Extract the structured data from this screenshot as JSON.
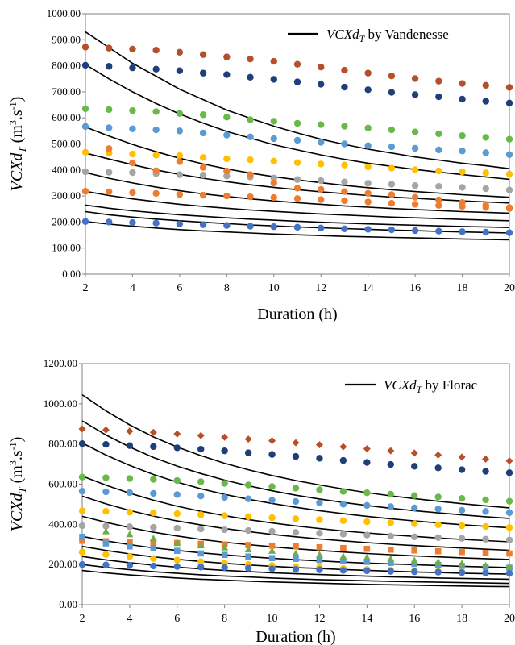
{
  "chart_data": [
    {
      "type": "scatter",
      "title": "",
      "xlabel": "Duration (h)",
      "ylabel": "VCXd_T (m3.s-1)",
      "ylabel_parts": {
        "main": "VCXd",
        "sub": "T",
        "unit_open": " (m",
        "sup1": "3",
        "mid": ".s",
        "sup2": "-1",
        "unit_close": ")"
      },
      "legend": [
        {
          "name_main": "VCXd",
          "name_sub": "T",
          "name_rest": " by Vandenesse",
          "color": "#000000"
        }
      ],
      "legend_position": "top-right",
      "xlim": [
        2,
        20
      ],
      "ylim": [
        0,
        1000
      ],
      "x_ticks": [
        2,
        4,
        6,
        8,
        10,
        12,
        14,
        16,
        18,
        20
      ],
      "y_ticks": [
        "0.00",
        "100.00",
        "200.00",
        "300.00",
        "400.00",
        "500.00",
        "600.00",
        "700.00",
        "800.00",
        "900.00",
        "1000.00"
      ],
      "grid": false,
      "x": [
        2,
        3,
        4,
        5,
        6,
        7,
        8,
        9,
        10,
        11,
        12,
        13,
        14,
        15,
        16,
        17,
        18,
        19,
        20
      ],
      "series": [
        {
          "color": "#b5502a",
          "marker": "circle",
          "values": [
            872,
            868,
            864,
            860,
            852,
            843,
            834,
            826,
            817,
            806,
            795,
            783,
            772,
            761,
            751,
            741,
            732,
            725,
            717
          ]
        },
        {
          "color": "#1f3f7a",
          "marker": "circle",
          "values": [
            802,
            798,
            792,
            787,
            781,
            772,
            766,
            756,
            748,
            738,
            729,
            718,
            708,
            698,
            689,
            681,
            672,
            664,
            657
          ]
        },
        {
          "color": "#6ab84a",
          "marker": "circle",
          "values": [
            635,
            632,
            628,
            624,
            617,
            612,
            603,
            593,
            587,
            579,
            574,
            568,
            561,
            554,
            546,
            539,
            532,
            525,
            518
          ]
        },
        {
          "color": "#5b9bd5",
          "marker": "circle",
          "values": [
            567,
            562,
            558,
            554,
            550,
            542,
            534,
            527,
            520,
            514,
            506,
            500,
            493,
            489,
            483,
            477,
            473,
            466,
            459
          ]
        },
        {
          "color": "#ffc000",
          "marker": "circle",
          "values": [
            468,
            465,
            461,
            457,
            455,
            448,
            443,
            439,
            434,
            428,
            423,
            419,
            412,
            407,
            401,
            396,
            393,
            389,
            384
          ]
        },
        {
          "color": "#a5a5a5",
          "marker": "circle",
          "values": [
            393,
            391,
            390,
            386,
            382,
            380,
            377,
            373,
            369,
            363,
            359,
            354,
            349,
            345,
            340,
            337,
            333,
            328,
            323
          ]
        },
        {
          "color": "#ed7d31",
          "marker": "circle",
          "values": [
            318,
            482,
            427,
            397,
            432,
            410,
            396,
            382,
            350,
            330,
            325,
            317,
            310,
            305,
            295,
            285,
            275,
            265,
            255
          ]
        },
        {
          "color": "#ed7d31",
          "marker": "circle",
          "values": [
            318,
            316,
            313,
            310,
            306,
            303,
            300,
            297,
            294,
            290,
            286,
            282,
            277,
            272,
            268,
            264,
            260,
            256,
            252
          ]
        },
        {
          "color": "#4472c4",
          "marker": "circle",
          "values": [
            202,
            200,
            198,
            196,
            193,
            190,
            187,
            184,
            182,
            180,
            177,
            174,
            172,
            170,
            167,
            165,
            163,
            161,
            159
          ]
        }
      ],
      "curves": [
        {
          "name": "VCXd_T by Vandenesse",
          "values": [
            930,
            870,
            810,
            760,
            710,
            670,
            630,
            598,
            568,
            542,
            518,
            498,
            480,
            465,
            450,
            438,
            426,
            416,
            405
          ]
        },
        {
          "values": [
            805,
            750,
            700,
            655,
            615,
            580,
            548,
            522,
            497,
            477,
            458,
            441,
            426,
            414,
            402,
            392,
            382,
            373,
            364
          ]
        },
        {
          "values": [
            565,
            530,
            498,
            470,
            445,
            423,
            404,
            388,
            374,
            362,
            351,
            341,
            332,
            324,
            317,
            311,
            305,
            300,
            295
          ]
        },
        {
          "values": [
            465,
            442,
            420,
            400,
            383,
            368,
            355,
            343,
            333,
            324,
            316,
            309,
            302,
            296,
            291,
            286,
            281,
            277,
            273
          ]
        },
        {
          "values": [
            390,
            368,
            350,
            334,
            320,
            308,
            298,
            289,
            281,
            274,
            268,
            262,
            257,
            252,
            248,
            244,
            240,
            237,
            234
          ]
        },
        {
          "values": [
            318,
            302,
            289,
            278,
            268,
            260,
            253,
            246,
            241,
            236,
            231,
            227,
            223,
            219,
            216,
            213,
            210,
            207,
            205
          ]
        },
        {
          "values": [
            265,
            253,
            243,
            235,
            228,
            222,
            216,
            211,
            207,
            203,
            199,
            196,
            193,
            190,
            188,
            185,
            183,
            181,
            179
          ]
        },
        {
          "values": [
            240,
            228,
            219,
            211,
            205,
            199,
            194,
            189,
            185,
            181,
            178,
            175,
            172,
            169,
            167,
            164,
            162,
            160,
            158
          ]
        },
        {
          "values": [
            202,
            192,
            184,
            177,
            171,
            166,
            162,
            158,
            154,
            151,
            148,
            145,
            143,
            141,
            139,
            137,
            135,
            133,
            132
          ]
        }
      ]
    },
    {
      "type": "scatter",
      "title": "",
      "xlabel": "Duration (h)",
      "ylabel": "VCXd_T (m3.s-1)",
      "ylabel_parts": {
        "main": "VCXd",
        "sub": "T",
        "unit_open": " (m",
        "sup1": "3",
        "mid": ".s",
        "sup2": "-1",
        "unit_close": ")"
      },
      "legend": [
        {
          "name_main": "VCXd",
          "name_sub": "T",
          "name_rest": " by Florac",
          "color": "#000000"
        }
      ],
      "legend_position": "top-right",
      "xlim": [
        2,
        20
      ],
      "ylim": [
        0,
        1200
      ],
      "x_ticks": [
        2,
        4,
        6,
        8,
        10,
        12,
        14,
        16,
        18,
        20
      ],
      "y_ticks": [
        "0.00",
        "200.00",
        "400.00",
        "600.00",
        "800.00",
        "1000.00",
        "1200.00"
      ],
      "grid": false,
      "x": [
        2,
        3,
        4,
        5,
        6,
        7,
        8,
        9,
        10,
        11,
        12,
        13,
        14,
        15,
        16,
        17,
        18,
        19,
        20
      ],
      "series": [
        {
          "color": "#b5502a",
          "marker": "diamond",
          "values": [
            875,
            870,
            864,
            858,
            850,
            842,
            834,
            824,
            816,
            806,
            796,
            786,
            776,
            766,
            755,
            745,
            735,
            725,
            716
          ]
        },
        {
          "color": "#1f3f7a",
          "marker": "circle",
          "values": [
            802,
            798,
            792,
            787,
            781,
            774,
            766,
            756,
            748,
            738,
            729,
            718,
            708,
            698,
            689,
            681,
            672,
            664,
            657
          ]
        },
        {
          "color": "#6ab84a",
          "marker": "circle",
          "values": [
            635,
            632,
            628,
            624,
            618,
            612,
            604,
            596,
            588,
            580,
            572,
            564,
            557,
            550,
            543,
            536,
            529,
            522,
            515
          ]
        },
        {
          "color": "#5b9bd5",
          "marker": "circle",
          "values": [
            565,
            562,
            558,
            554,
            548,
            541,
            534,
            527,
            520,
            514,
            507,
            500,
            494,
            488,
            482,
            476,
            470,
            464,
            458
          ]
        },
        {
          "color": "#ffc000",
          "marker": "circle",
          "values": [
            468,
            465,
            461,
            457,
            453,
            448,
            443,
            438,
            433,
            428,
            423,
            418,
            413,
            408,
            403,
            398,
            393,
            389,
            384
          ]
        },
        {
          "color": "#a5a5a5",
          "marker": "circle",
          "values": [
            393,
            391,
            388,
            385,
            381,
            377,
            373,
            369,
            365,
            360,
            356,
            351,
            347,
            342,
            338,
            334,
            330,
            326,
            322
          ]
        },
        {
          "color": "#ed7d31",
          "marker": "square",
          "values": [
            318,
            316,
            313,
            310,
            307,
            303,
            300,
            297,
            294,
            290,
            286,
            282,
            278,
            274,
            270,
            266,
            262,
            258,
            255
          ]
        },
        {
          "color": "#5b9bd5",
          "marker": "square",
          "values": [
            338,
            305,
            290,
            280,
            268,
            255,
            248,
            240,
            232,
            228,
            222,
            218,
            213,
            208,
            203,
            198,
            193,
            188,
            184
          ]
        },
        {
          "color": "#70ad47",
          "marker": "triangle",
          "values": [
            270,
            365,
            350,
            330,
            310,
            295,
            285,
            275,
            268,
            255,
            248,
            240,
            235,
            228,
            220,
            213,
            205,
            195,
            190
          ]
        },
        {
          "color": "#ffc000",
          "marker": "circle",
          "values": [
            262,
            250,
            240,
            230,
            222,
            214,
            207,
            200,
            195,
            190,
            185,
            180,
            176,
            172,
            168,
            165,
            162,
            159,
            156
          ]
        },
        {
          "color": "#4472c4",
          "marker": "circle",
          "values": [
            200,
            198,
            196,
            193,
            190,
            187,
            185,
            182,
            179,
            176,
            174,
            171,
            169,
            166,
            164,
            162,
            160,
            158,
            156
          ]
        }
      ],
      "curves": [
        {
          "name": "VCXd_T by Florac",
          "values": [
            1045,
            965,
            895,
            835,
            785,
            742,
            704,
            672,
            643,
            618,
            596,
            576,
            558,
            542,
            528,
            515,
            503,
            492,
            482
          ]
        },
        {
          "values": [
            915,
            845,
            785,
            733,
            690,
            653,
            620,
            592,
            567,
            545,
            526,
            509,
            494,
            480,
            468,
            457,
            447,
            438,
            430
          ]
        },
        {
          "values": [
            805,
            745,
            693,
            648,
            610,
            577,
            549,
            525,
            504,
            485,
            468,
            453,
            440,
            428,
            417,
            407,
            398,
            390,
            383
          ]
        },
        {
          "values": [
            640,
            595,
            555,
            520,
            490,
            465,
            443,
            424,
            407,
            392,
            379,
            367,
            357,
            348,
            340,
            332,
            325,
            319,
            313
          ]
        },
        {
          "values": [
            540,
            502,
            469,
            441,
            417,
            397,
            379,
            364,
            350,
            338,
            327,
            318,
            309,
            301,
            294,
            288,
            282,
            276,
            271
          ]
        },
        {
          "values": [
            440,
            410,
            384,
            361,
            342,
            325,
            311,
            299,
            288,
            278,
            270,
            262,
            255,
            249,
            243,
            238,
            233,
            229,
            225
          ]
        },
        {
          "values": [
            340,
            318,
            299,
            283,
            270,
            258,
            248,
            239,
            231,
            224,
            218,
            212,
            207,
            203,
            199,
            195,
            191,
            188,
            185
          ]
        },
        {
          "values": [
            290,
            270,
            253,
            238,
            226,
            215,
            206,
            198,
            191,
            185,
            180,
            175,
            171,
            167,
            163,
            160,
            157,
            154,
            152
          ]
        },
        {
          "values": [
            240,
            223,
            209,
            197,
            187,
            178,
            171,
            165,
            159,
            154,
            150,
            146,
            142,
            139,
            136,
            133,
            131,
            129,
            127
          ]
        },
        {
          "values": [
            200,
            186,
            174,
            164,
            156,
            149,
            143,
            138,
            133,
            129,
            125,
            122,
            119,
            116,
            114,
            112,
            110,
            108,
            106
          ]
        },
        {
          "values": [
            170,
            158,
            148,
            140,
            133,
            127,
            122,
            117,
            113,
            110,
            107,
            104,
            101,
            99,
            97,
            95,
            93,
            91,
            90
          ]
        }
      ]
    }
  ]
}
